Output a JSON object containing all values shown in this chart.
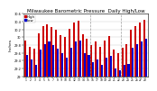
{
  "title": "Milwaukee Barometric Pressure  Daily High/Low",
  "title_fontsize": 4.0,
  "ylabel": "Inches",
  "ylabel_fontsize": 3.2,
  "days": [
    1,
    2,
    3,
    4,
    5,
    6,
    7,
    8,
    9,
    10,
    11,
    12,
    13,
    14,
    15,
    16,
    17,
    18,
    19,
    20,
    21,
    22,
    23,
    24,
    25,
    26,
    27,
    28
  ],
  "high": [
    29.92,
    29.75,
    29.7,
    30.1,
    30.28,
    30.32,
    30.25,
    30.2,
    30.05,
    30.0,
    30.22,
    30.38,
    30.42,
    30.08,
    29.95,
    29.8,
    29.88,
    29.75,
    29.92,
    30.02,
    29.68,
    29.6,
    29.72,
    29.82,
    30.18,
    30.28,
    30.38,
    30.45
  ],
  "low": [
    29.55,
    29.42,
    29.3,
    29.68,
    29.82,
    29.88,
    29.8,
    29.7,
    29.6,
    29.48,
    29.72,
    29.88,
    29.92,
    29.6,
    29.55,
    29.35,
    29.42,
    29.3,
    29.48,
    29.52,
    29.2,
    29.15,
    29.28,
    29.32,
    29.72,
    29.82,
    29.88,
    29.95
  ],
  "high_color": "#cc0000",
  "low_color": "#0000cc",
  "bg_color": "#ffffff",
  "plot_bg": "#ffffff",
  "ylim_min": 29.0,
  "ylim_max": 30.6,
  "ytick_labels": [
    "29",
    "29.2",
    "29.4",
    "29.6",
    "29.8",
    "30",
    "30.2",
    "30.4",
    "30.6"
  ],
  "ytick_vals": [
    29.0,
    29.2,
    29.4,
    29.6,
    29.8,
    30.0,
    30.2,
    30.4,
    30.6
  ],
  "bar_width": 0.42,
  "dashed_vlines": [
    15.5,
    22.5
  ],
  "legend_high": "High",
  "legend_low": "Low",
  "legend_fontsize": 2.8
}
